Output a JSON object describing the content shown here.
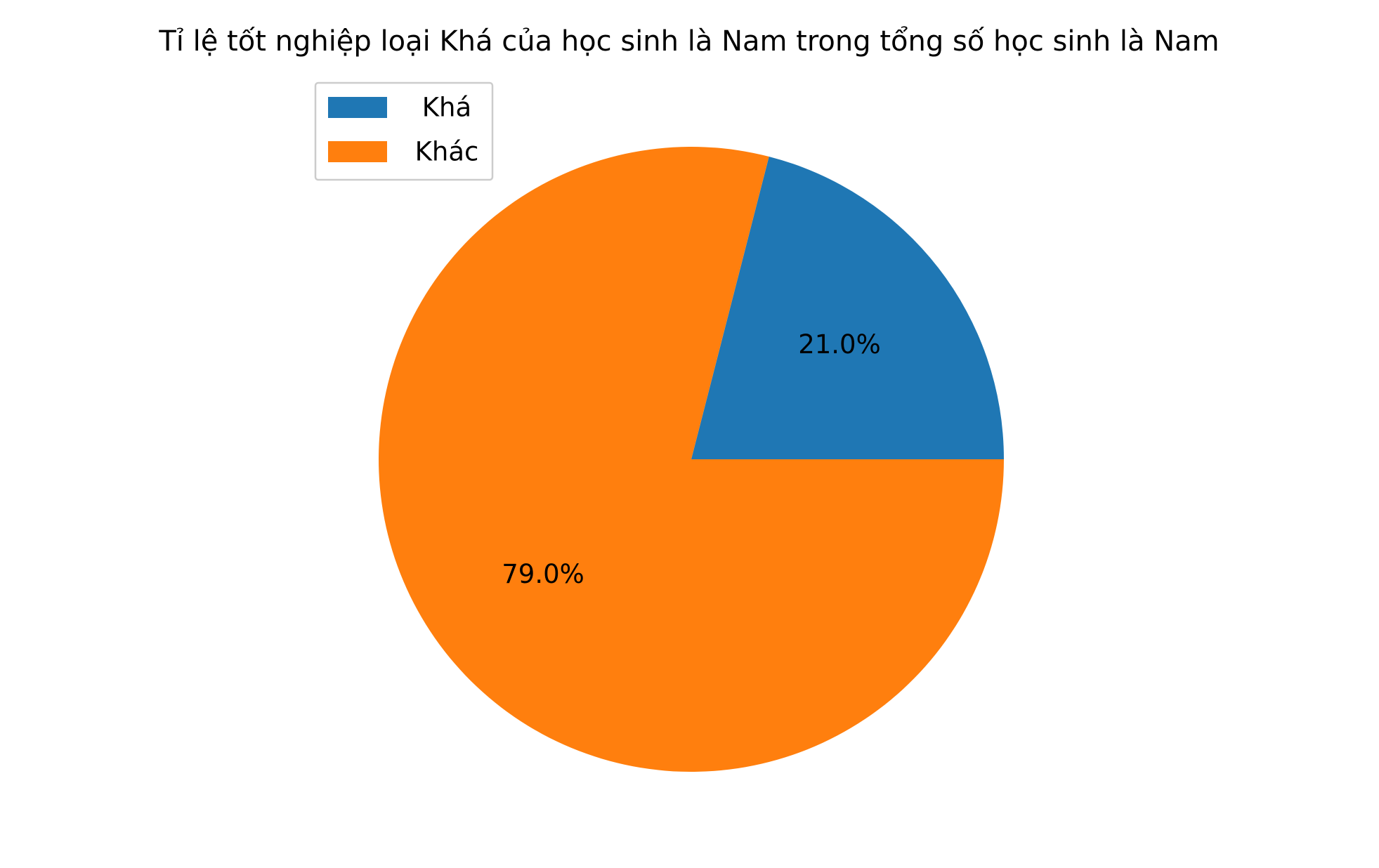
{
  "chart_data": {
    "type": "pie",
    "title": "Tỉ lệ tốt nghiệp loại  Khá của học sinh là Nam trong tổng số học sinh là Nam",
    "slices": [
      {
        "name": "Khá",
        "value": 21.0,
        "label": "21.0%",
        "color": "#1f77b4"
      },
      {
        "name": "Khác",
        "value": 79.0,
        "label": "79.0%",
        "color": "#ff7f0e"
      }
    ],
    "start_angle_deg": 0,
    "direction": "counterclockwise",
    "legend": {
      "position": "upper-left",
      "entries": [
        "Khá",
        "Khác"
      ]
    }
  }
}
